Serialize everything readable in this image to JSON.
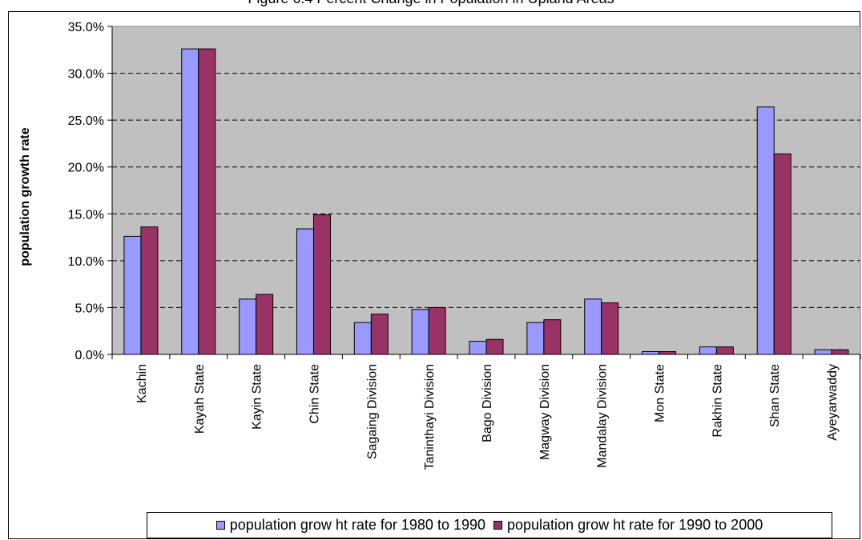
{
  "chart_data": {
    "type": "bar",
    "title": "Figure 6.4 Percent Change in Population in Upland Areas",
    "xlabel": "",
    "ylabel": "population growth rate",
    "categories": [
      "Kachin",
      "Kayah State",
      "Kayin State",
      "Chin State",
      "Sagaing Division",
      "Taninthayi Division",
      "Bago Division",
      "Magway Division",
      "Mandalay Division",
      "Mon State",
      "Rakhin State",
      "Shan State",
      "Ayeyarwaddy"
    ],
    "series": [
      {
        "name": "population grow ht rate for 1980 to 1990",
        "color": "#9999ff",
        "values": [
          12.6,
          32.6,
          5.9,
          13.4,
          3.4,
          4.8,
          1.4,
          3.4,
          5.9,
          0.3,
          0.8,
          26.4,
          0.5
        ]
      },
      {
        "name": "population grow ht rate for 1990 to 2000",
        "color": "#993366",
        "values": [
          13.6,
          32.6,
          6.4,
          14.9,
          4.3,
          5.0,
          1.6,
          3.7,
          5.5,
          0.3,
          0.8,
          21.4,
          0.5
        ]
      }
    ],
    "ylim": [
      0,
      35
    ],
    "ytick_labels": [
      "0.0%",
      "5.0%",
      "10.0%",
      "15.0%",
      "20.0%",
      "25.0%",
      "30.0%",
      "35.0%"
    ],
    "grid": true,
    "plot_background": "#c0c0c0",
    "legend_position": "bottom"
  }
}
